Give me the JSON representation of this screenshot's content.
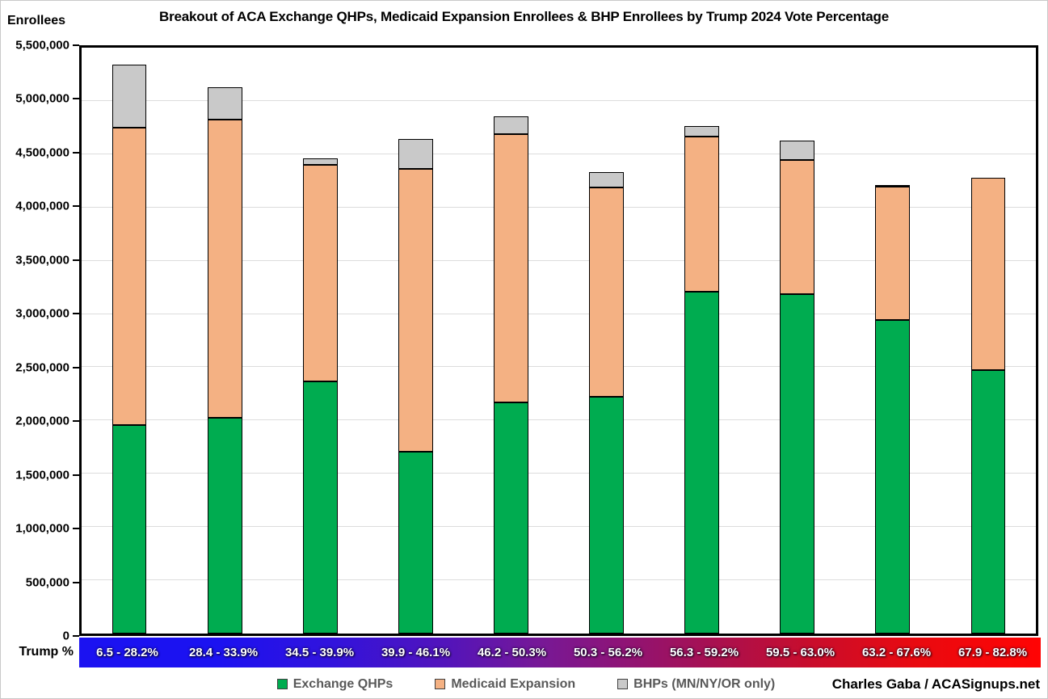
{
  "title": "Breakout of ACA Exchange QHPs, Medicaid Expansion Enrollees & BHP Enrollees by Trump 2024 Vote Percentage",
  "attribution": "Charles Gaba / ACASignups.net",
  "y_axis": {
    "label": "Enrollees",
    "tick_labels": [
      "0",
      "500,000",
      "1,000,000",
      "1,500,000",
      "2,000,000",
      "2,500,000",
      "3,000,000",
      "3,500,000",
      "4,000,000",
      "4,500,000",
      "5,000,000",
      "5,500,000"
    ],
    "tick_values": [
      0,
      500000,
      1000000,
      1500000,
      2000000,
      2500000,
      3000000,
      3500000,
      4000000,
      4500000,
      5000000,
      5500000
    ]
  },
  "x_axis": {
    "label": "Trump %",
    "band_colors": [
      "#1b12f1",
      "#771896",
      "#ff0404"
    ]
  },
  "legend": [
    {
      "label": "Exchange QHPs",
      "color": "#00ac50"
    },
    {
      "label": "Medicaid Expansion",
      "color": "#f4b183"
    },
    {
      "label": "BHPs (MN/NY/OR only)",
      "color": "#c9c9c9"
    }
  ],
  "chart_data": {
    "type": "bar",
    "stacked": true,
    "title": "Breakout of ACA Exchange QHPs, Medicaid Expansion Enrollees & BHP Enrollees by Trump 2024 Vote Percentage",
    "xlabel": "Trump %",
    "ylabel": "Enrollees",
    "ylim": [
      0,
      5500000
    ],
    "grid": true,
    "legend_position": "bottom",
    "categories": [
      "6.5 - 28.2%",
      "28.4 - 33.9%",
      "34.5 - 39.9%",
      "39.9 - 46.1%",
      "46.2 - 50.3%",
      "50.3 - 56.2%",
      "56.3 - 59.2%",
      "59.5 - 63.0%",
      "63.2 - 67.6%",
      "67.9 - 82.8%"
    ],
    "series": [
      {
        "name": "Exchange QHPs",
        "color": "#00ac50",
        "values": [
          1960000,
          2025000,
          2370000,
          1710000,
          2170000,
          2220000,
          3210000,
          3185000,
          2945000,
          2475000
        ]
      },
      {
        "name": "Medicaid Expansion",
        "color": "#f4b183",
        "values": [
          2790000,
          2800000,
          2030000,
          2655000,
          2515000,
          1970000,
          1455000,
          1260000,
          1250000,
          1800000
        ]
      },
      {
        "name": "BHPs (MN/NY/OR only)",
        "color": "#c9c9c9",
        "values": [
          590000,
          300000,
          60000,
          280000,
          170000,
          140000,
          100000,
          180000,
          15000,
          0
        ]
      }
    ],
    "totals": [
      5340000,
      5125000,
      4460000,
      4645000,
      4855000,
      4330000,
      4765000,
      4625000,
      4210000,
      4275000
    ]
  }
}
